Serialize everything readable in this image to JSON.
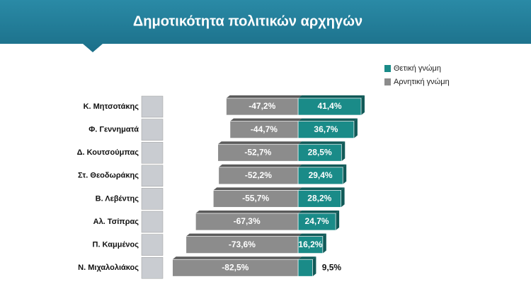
{
  "chart_data": {
    "type": "diverging-bar",
    "title": "Δημοτικότητα πολιτικών αρχηγών",
    "categories": [
      "Κ. Μητσοτάκης",
      "Φ. Γεννηματά",
      "Δ. Κουτσούμπας",
      "Στ. Θεοδωράκης",
      "Β. Λεβέντης",
      "Αλ. Τσίπρας",
      "Π. Καμμένος",
      "Ν. Μιχαλολιάκος"
    ],
    "series": [
      {
        "name": "Θετική γνώμη",
        "color": "#1a8b88",
        "values": [
          41.4,
          36.7,
          28.5,
          29.4,
          28.2,
          24.7,
          16.2,
          9.5
        ],
        "value_labels": [
          "41,4%",
          "36,7%",
          "28,5%",
          "29,4%",
          "28,2%",
          "24,7%",
          "16,2%",
          "9,5%"
        ]
      },
      {
        "name": "Αρνητική γνώμη",
        "color": "#8c8c8c",
        "values": [
          -47.2,
          -44.7,
          -52.7,
          -52.2,
          -55.7,
          -67.3,
          -73.6,
          -82.5
        ],
        "value_labels": [
          "-47,2%",
          "-44,7%",
          "-52,7%",
          "-52,2%",
          "-55,7%",
          "-67,3%",
          "-73,6%",
          "-82,5%"
        ]
      }
    ]
  }
}
